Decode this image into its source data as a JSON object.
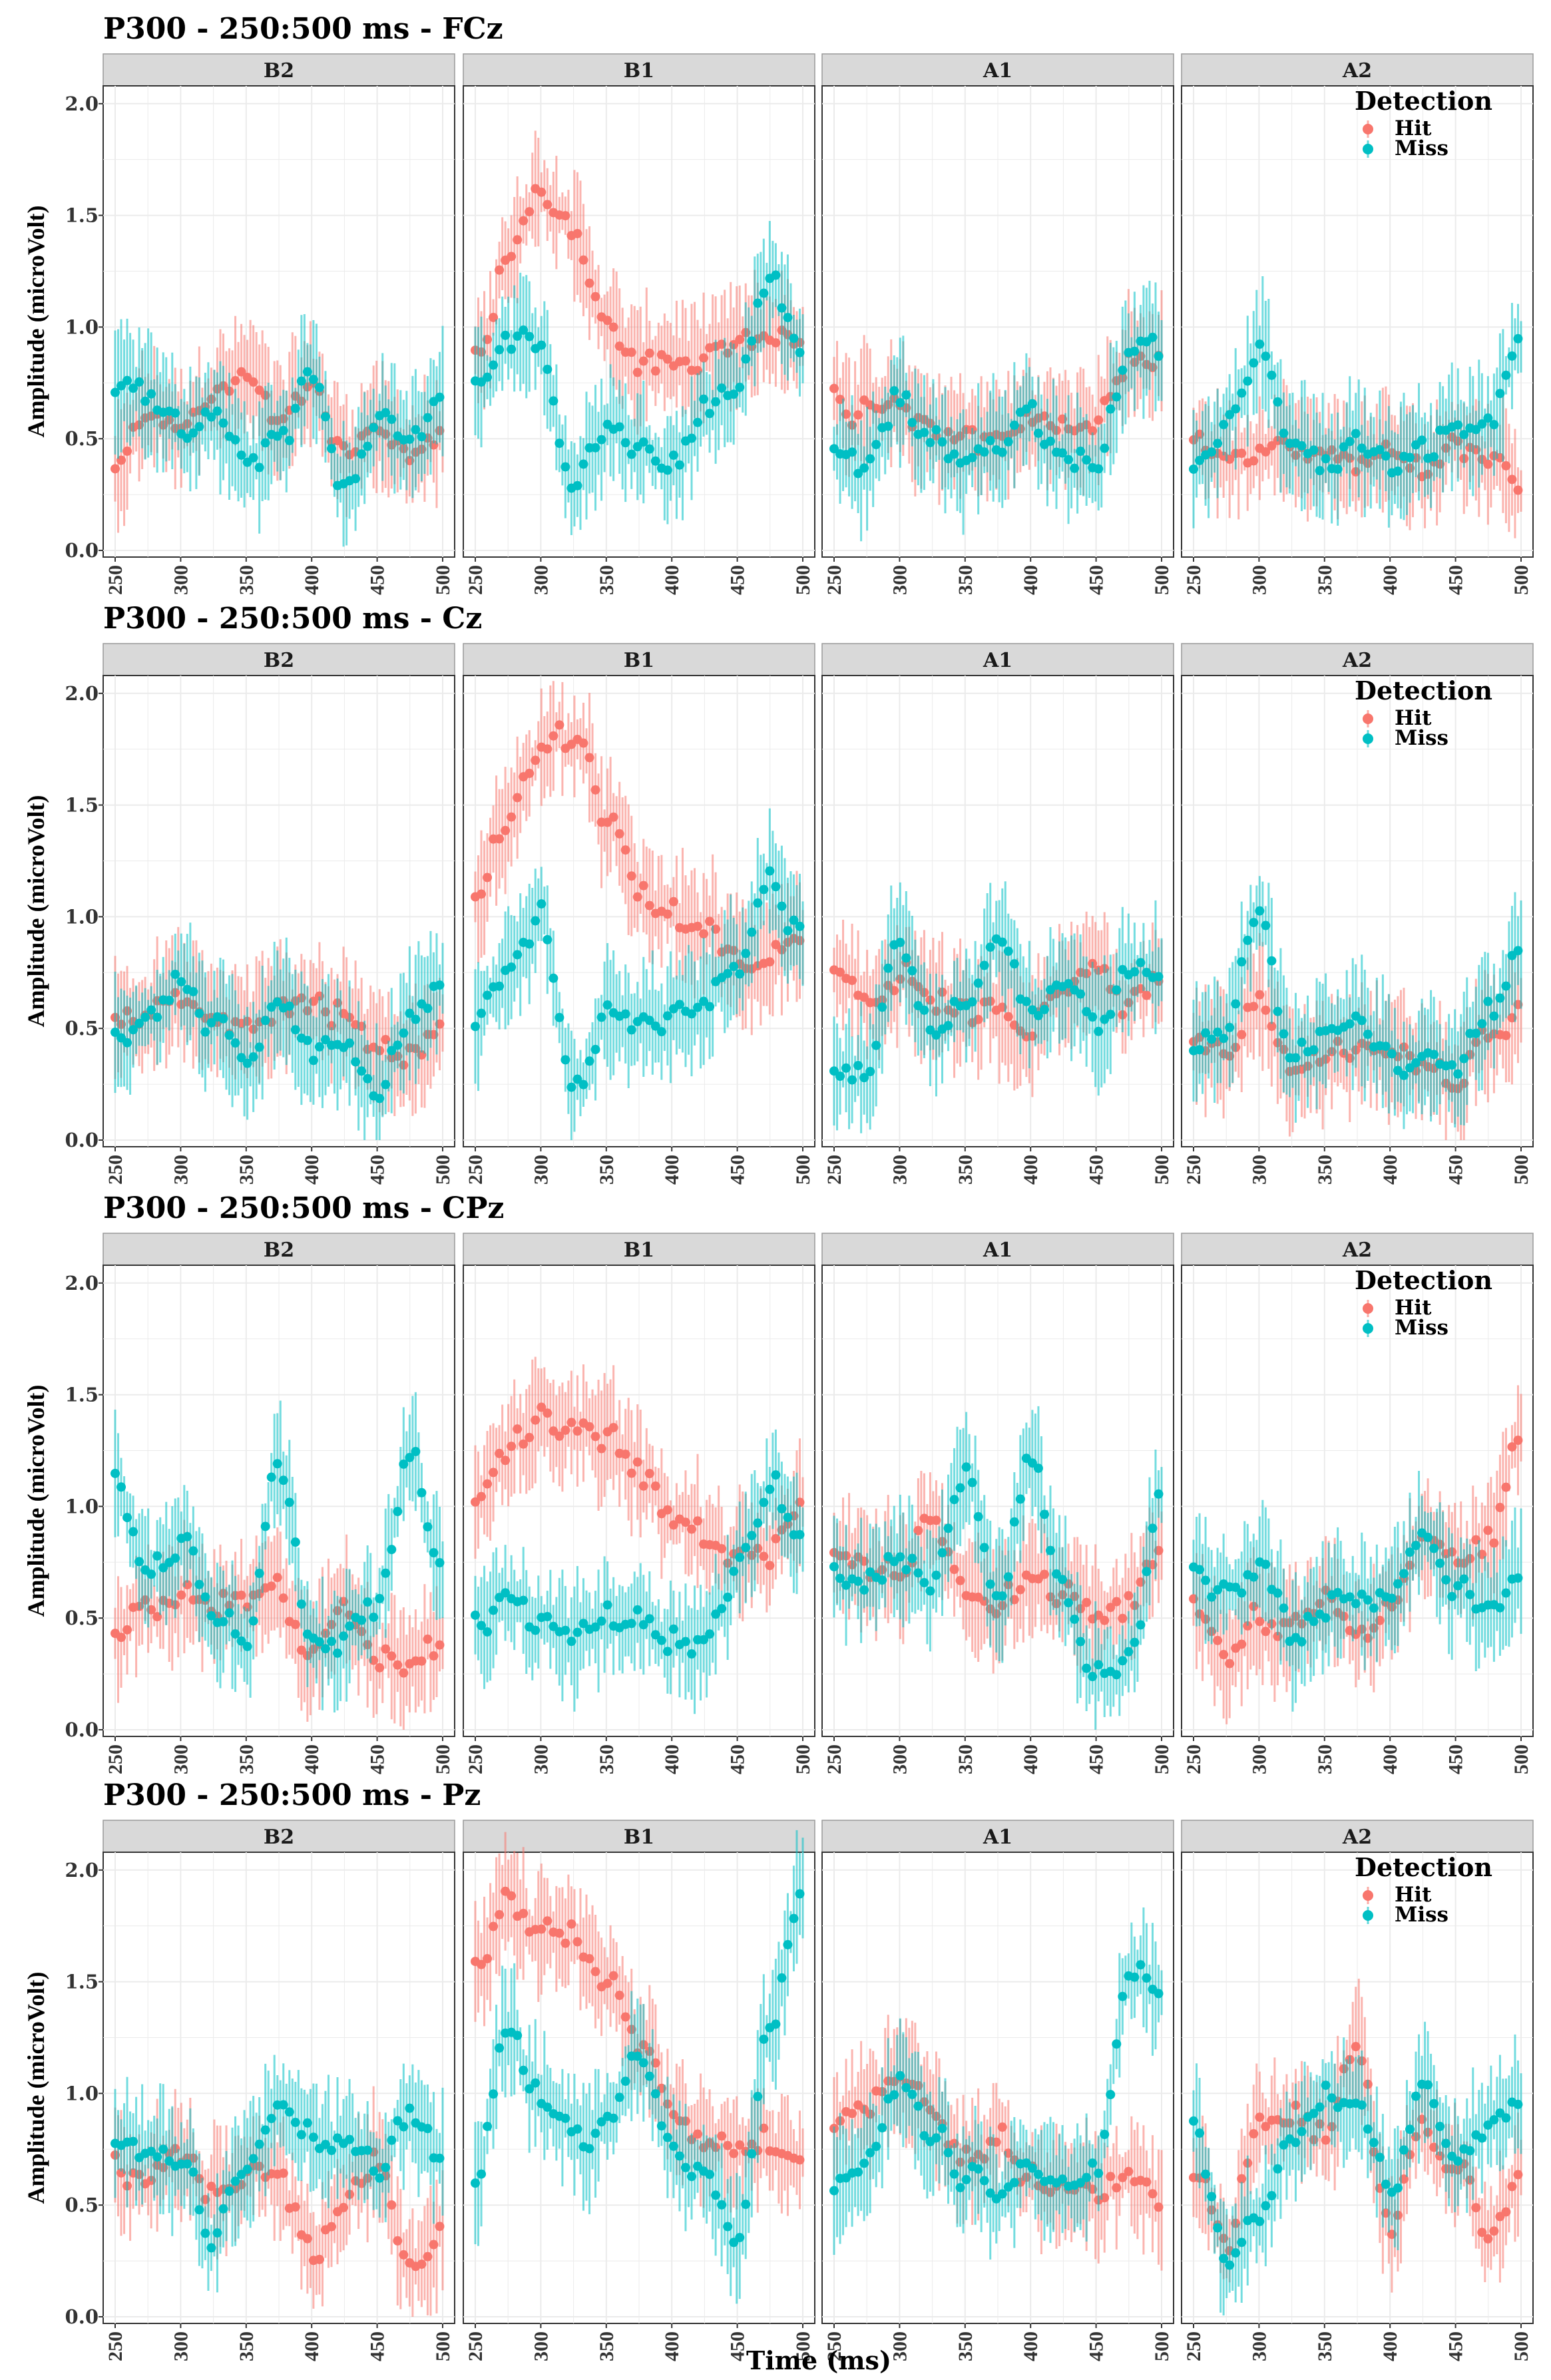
{
  "figure": {
    "x_axis_label": "Time (ms)",
    "y_axis_label": "Amplitude (microVolt)",
    "legend_title": "Detection",
    "legend_items": [
      {
        "label": "Hit",
        "color": "#F8766D"
      },
      {
        "label": "Miss",
        "color": "#00BFC4"
      }
    ],
    "panel_strips": [
      "B2",
      "B1",
      "A1",
      "A2"
    ],
    "x_ticks": [
      "250",
      "300",
      "350",
      "400",
      "450",
      "500"
    ],
    "y_ticks": [
      "0.0",
      "0.5",
      "1.0",
      "1.5",
      "2.0"
    ],
    "colors": {
      "hit": "#F8766D",
      "miss": "#00BFC4",
      "strip_bg": "#D9D9D9",
      "grid": "#EBEBEB"
    }
  },
  "chart_data": [
    {
      "type": "line",
      "title": "P300 - 250:500 ms - FCz",
      "x": [
        250,
        275,
        300,
        325,
        350,
        375,
        400,
        425,
        450,
        475,
        500
      ],
      "xlabel": "Time (ms)",
      "ylabel": "Amplitude (microVolt)",
      "xlim": [
        250,
        500
      ],
      "ylim": [
        0,
        2.05
      ],
      "panels": [
        {
          "name": "B2",
          "series": [
            {
              "name": "Hit",
              "values": [
                0.35,
                0.62,
                0.52,
                0.7,
                0.78,
                0.62,
                0.72,
                0.45,
                0.58,
                0.42,
                0.5
              ]
            },
            {
              "name": "Miss",
              "values": [
                0.74,
                0.7,
                0.55,
                0.6,
                0.4,
                0.45,
                0.8,
                0.3,
                0.6,
                0.5,
                0.65
              ]
            }
          ]
        },
        {
          "name": "B1",
          "series": [
            {
              "name": "Hit",
              "values": [
                0.85,
                1.3,
                1.58,
                1.45,
                1.0,
                0.82,
                0.85,
                0.82,
                0.9,
                0.98,
                0.9
              ]
            },
            {
              "name": "Miss",
              "values": [
                0.72,
                0.9,
                0.92,
                0.3,
                0.6,
                0.45,
                0.4,
                0.62,
                0.75,
                1.2,
                0.95
              ]
            }
          ]
        },
        {
          "name": "A1",
          "series": [
            {
              "name": "Hit",
              "values": [
                0.7,
                0.6,
                0.62,
                0.55,
                0.52,
                0.5,
                0.58,
                0.55,
                0.62,
                0.82,
                0.85
              ]
            },
            {
              "name": "Miss",
              "values": [
                0.45,
                0.35,
                0.7,
                0.5,
                0.4,
                0.45,
                0.6,
                0.45,
                0.4,
                0.85,
                0.9
              ]
            }
          ]
        },
        {
          "name": "A2",
          "series": [
            {
              "name": "Hit",
              "values": [
                0.5,
                0.42,
                0.4,
                0.45,
                0.38,
                0.42,
                0.4,
                0.38,
                0.45,
                0.42,
                0.32
              ]
            },
            {
              "name": "Miss",
              "values": [
                0.4,
                0.55,
                0.9,
                0.45,
                0.4,
                0.48,
                0.42,
                0.4,
                0.55,
                0.55,
                0.95
              ]
            }
          ]
        }
      ]
    },
    {
      "type": "line",
      "title": "P300 - 250:500 ms - Cz",
      "x": [
        250,
        275,
        300,
        325,
        350,
        375,
        400,
        425,
        450,
        475,
        500
      ],
      "xlabel": "Time (ms)",
      "ylabel": "Amplitude (microVolt)",
      "xlim": [
        250,
        500
      ],
      "ylim": [
        0,
        2.05
      ],
      "panels": [
        {
          "name": "B2",
          "series": [
            {
              "name": "Hit",
              "values": [
                0.55,
                0.6,
                0.62,
                0.55,
                0.5,
                0.6,
                0.62,
                0.55,
                0.45,
                0.38,
                0.48
              ]
            },
            {
              "name": "Miss",
              "values": [
                0.45,
                0.55,
                0.72,
                0.5,
                0.38,
                0.65,
                0.4,
                0.45,
                0.22,
                0.55,
                0.7
              ]
            }
          ]
        },
        {
          "name": "B1",
          "series": [
            {
              "name": "Hit",
              "values": [
                1.05,
                1.45,
                1.75,
                1.8,
                1.45,
                1.1,
                1.0,
                0.95,
                0.8,
                0.85,
                0.92
              ]
            },
            {
              "name": "Miss",
              "values": [
                0.5,
                0.7,
                0.98,
                0.2,
                0.55,
                0.5,
                0.55,
                0.6,
                0.8,
                1.15,
                0.9
              ]
            }
          ]
        },
        {
          "name": "A1",
          "series": [
            {
              "name": "Hit",
              "values": [
                0.72,
                0.6,
                0.75,
                0.62,
                0.55,
                0.58,
                0.5,
                0.65,
                0.8,
                0.6,
                0.75
              ]
            },
            {
              "name": "Miss",
              "values": [
                0.35,
                0.3,
                0.9,
                0.5,
                0.6,
                0.9,
                0.55,
                0.7,
                0.55,
                0.8,
                0.75
              ]
            }
          ]
        },
        {
          "name": "A2",
          "series": [
            {
              "name": "Hit",
              "values": [
                0.45,
                0.4,
                0.6,
                0.35,
                0.4,
                0.45,
                0.4,
                0.35,
                0.25,
                0.5,
                0.55
              ]
            },
            {
              "name": "Miss",
              "values": [
                0.45,
                0.5,
                1.0,
                0.4,
                0.45,
                0.5,
                0.4,
                0.3,
                0.35,
                0.6,
                0.8
              ]
            }
          ]
        }
      ]
    },
    {
      "type": "line",
      "title": "P300 - 250:500 ms - CPz",
      "x": [
        250,
        275,
        300,
        325,
        350,
        375,
        400,
        425,
        450,
        475,
        500
      ],
      "xlabel": "Time (ms)",
      "ylabel": "Amplitude (microVolt)",
      "xlim": [
        250,
        500
      ],
      "ylim": [
        0,
        2.05
      ],
      "panels": [
        {
          "name": "B2",
          "series": [
            {
              "name": "Hit",
              "values": [
                0.45,
                0.52,
                0.6,
                0.55,
                0.55,
                0.62,
                0.35,
                0.55,
                0.35,
                0.32,
                0.38
              ]
            },
            {
              "name": "Miss",
              "values": [
                1.1,
                0.7,
                0.85,
                0.55,
                0.45,
                1.18,
                0.45,
                0.4,
                0.55,
                1.22,
                0.7
              ]
            }
          ]
        },
        {
          "name": "B1",
          "series": [
            {
              "name": "Hit",
              "values": [
                1.0,
                1.25,
                1.38,
                1.4,
                1.32,
                1.15,
                0.95,
                0.88,
                0.78,
                0.8,
                0.95
              ]
            },
            {
              "name": "Miss",
              "values": [
                0.5,
                0.55,
                0.45,
                0.42,
                0.5,
                0.5,
                0.42,
                0.4,
                0.7,
                1.1,
                0.9
              ]
            }
          ]
        },
        {
          "name": "A1",
          "series": [
            {
              "name": "Hit",
              "values": [
                0.78,
                0.75,
                0.7,
                0.95,
                0.6,
                0.55,
                0.7,
                0.6,
                0.5,
                0.55,
                0.8
              ]
            },
            {
              "name": "Miss",
              "values": [
                0.7,
                0.65,
                0.75,
                0.7,
                1.15,
                0.6,
                1.25,
                0.6,
                0.25,
                0.3,
                1.05
              ]
            }
          ]
        },
        {
          "name": "A2",
          "series": [
            {
              "name": "Hit",
              "values": [
                0.55,
                0.3,
                0.5,
                0.45,
                0.6,
                0.4,
                0.55,
                0.85,
                0.75,
                0.85,
                1.35
              ]
            },
            {
              "name": "Miss",
              "values": [
                0.7,
                0.6,
                0.75,
                0.45,
                0.55,
                0.6,
                0.6,
                0.85,
                0.65,
                0.5,
                0.7
              ]
            }
          ]
        }
      ]
    },
    {
      "type": "line",
      "title": "P300 - 250:500 ms - Pz",
      "x": [
        250,
        275,
        300,
        325,
        350,
        375,
        400,
        425,
        450,
        475,
        500
      ],
      "xlabel": "Time (ms)",
      "ylabel": "Amplitude (microVolt)",
      "xlim": [
        250,
        500
      ],
      "ylim": [
        0,
        2.05
      ],
      "panels": [
        {
          "name": "B2",
          "series": [
            {
              "name": "Hit",
              "values": [
                0.68,
                0.65,
                0.72,
                0.55,
                0.6,
                0.62,
                0.28,
                0.5,
                0.7,
                0.25,
                0.4
              ]
            },
            {
              "name": "Miss",
              "values": [
                0.8,
                0.78,
                0.7,
                0.4,
                0.7,
                0.9,
                0.8,
                0.78,
                0.7,
                0.9,
                0.7
              ]
            }
          ]
        },
        {
          "name": "B1",
          "series": [
            {
              "name": "Hit",
              "values": [
                1.55,
                1.85,
                1.72,
                1.7,
                1.5,
                1.2,
                0.9,
                0.8,
                0.7,
                0.8,
                0.72
              ]
            },
            {
              "name": "Miss",
              "values": [
                0.6,
                1.3,
                1.0,
                0.85,
                0.8,
                1.2,
                0.75,
                0.65,
                0.4,
                1.3,
                1.9
              ]
            }
          ]
        },
        {
          "name": "A1",
          "series": [
            {
              "name": "Hit",
              "values": [
                0.8,
                0.95,
                1.1,
                0.95,
                0.7,
                0.8,
                0.62,
                0.58,
                0.55,
                0.6,
                0.55
              ]
            },
            {
              "name": "Miss",
              "values": [
                0.55,
                0.7,
                1.05,
                0.8,
                0.65,
                0.55,
                0.7,
                0.6,
                0.7,
                1.55,
                1.5
              ]
            }
          ]
        },
        {
          "name": "A2",
          "series": [
            {
              "name": "Hit",
              "values": [
                0.65,
                0.35,
                0.85,
                0.9,
                0.8,
                1.2,
                0.4,
                0.9,
                0.65,
                0.4,
                0.65
              ]
            },
            {
              "name": "Miss",
              "values": [
                0.9,
                0.25,
                0.45,
                0.8,
                1.0,
                0.9,
                0.55,
                1.0,
                0.75,
                0.85,
                0.95
              ]
            }
          ]
        }
      ]
    }
  ]
}
